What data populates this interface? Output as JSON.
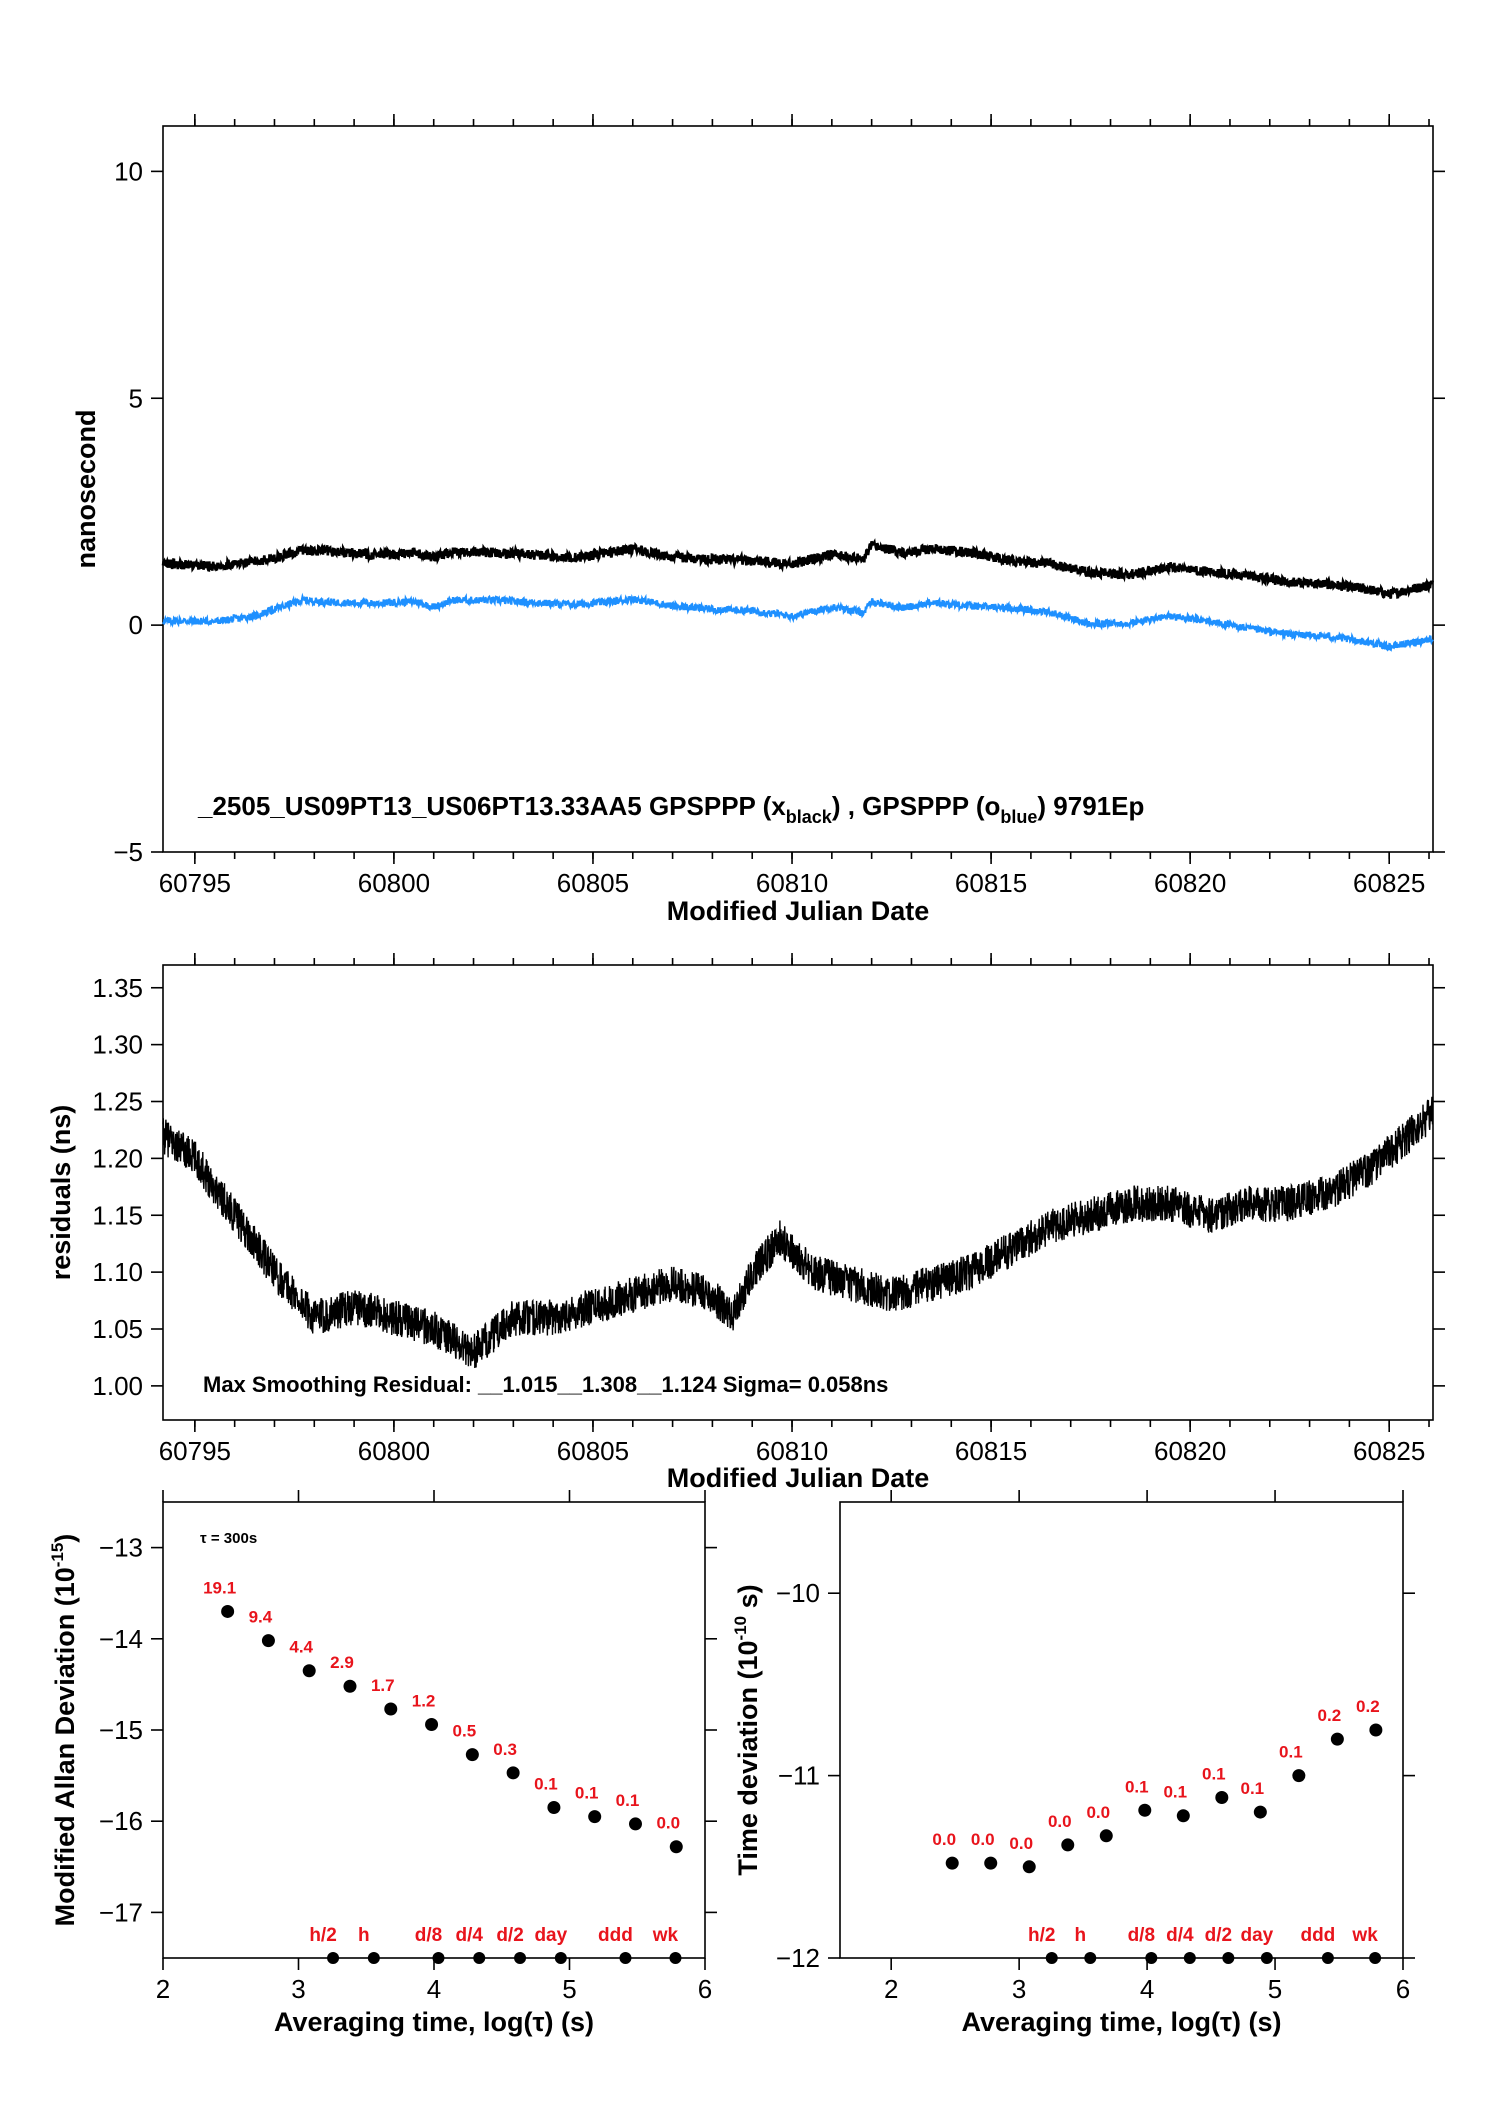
{
  "colors": {
    "black_series": "#000000",
    "blue_series": "#1e90ff",
    "red_labels": "#e8141c"
  },
  "chart_data": [
    {
      "type": "line",
      "panel": "top",
      "xlabel": "Modified Julian Date",
      "ylabel": "nanosecond",
      "xlim": [
        60794.2,
        60826.1
      ],
      "ylim": [
        -5,
        11
      ],
      "x_ticks": [
        "60795",
        "60800",
        "60805",
        "60810",
        "60815",
        "60820",
        "60825"
      ],
      "x_tick_values": [
        60795,
        60800,
        60805,
        60810,
        60815,
        60820,
        60825
      ],
      "y_ticks": [
        "10",
        "5",
        "0",
        "−5"
      ],
      "y_tick_values": [
        10,
        5,
        0,
        -5
      ],
      "annotation": {
        "prefix": "_2505_US09PT13_US06PT13.33AA5     GPSPPP (x",
        "sub1": "black",
        "mid": ") ,  GPSPPP (o",
        "sub2": "blue",
        "suffix": ")  9791Ep"
      },
      "x": [
        60794.2,
        60795.5,
        60796.5,
        60797.0,
        60797.7,
        60798.5,
        60799.5,
        60800.5,
        60801.0,
        60801.5,
        60802.5,
        60803.5,
        60804.5,
        60805.5,
        60806.0,
        60807.0,
        60808.0,
        60809.0,
        60810.0,
        60811.0,
        60811.8,
        60812.0,
        60812.8,
        60813.5,
        60814.5,
        60815.5,
        60816.5,
        60817.5,
        60818.5,
        60819.5,
        60820.5,
        60821.5,
        60822.5,
        60823.5,
        60824.5,
        60825.0,
        60826.1
      ],
      "series": [
        {
          "name": "GPSPPP (x black)",
          "color": "#000000",
          "values": [
            1.35,
            1.3,
            1.4,
            1.48,
            1.65,
            1.62,
            1.55,
            1.58,
            1.5,
            1.62,
            1.6,
            1.55,
            1.48,
            1.62,
            1.68,
            1.5,
            1.45,
            1.42,
            1.35,
            1.55,
            1.45,
            1.75,
            1.6,
            1.68,
            1.6,
            1.42,
            1.35,
            1.15,
            1.12,
            1.28,
            1.18,
            1.08,
            0.95,
            0.9,
            0.78,
            0.68,
            0.9
          ]
        },
        {
          "name": "GPSPPP (o blue)",
          "color": "#1e90ff",
          "values": [
            0.1,
            0.08,
            0.2,
            0.35,
            0.55,
            0.5,
            0.48,
            0.52,
            0.4,
            0.55,
            0.55,
            0.5,
            0.45,
            0.52,
            0.58,
            0.42,
            0.35,
            0.32,
            0.2,
            0.4,
            0.28,
            0.52,
            0.38,
            0.5,
            0.42,
            0.38,
            0.28,
            0.02,
            0.05,
            0.2,
            0.08,
            -0.08,
            -0.2,
            -0.25,
            -0.38,
            -0.48,
            -0.3
          ]
        }
      ]
    },
    {
      "type": "line",
      "panel": "middle",
      "xlabel": "Modified Julian Date",
      "ylabel": "residuals (ns)",
      "xlim": [
        60794.2,
        60826.1
      ],
      "ylim": [
        0.97,
        1.37
      ],
      "x_ticks": [
        "60795",
        "60800",
        "60805",
        "60810",
        "60815",
        "60820",
        "60825"
      ],
      "x_tick_values": [
        60795,
        60800,
        60805,
        60810,
        60815,
        60820,
        60825
      ],
      "y_ticks": [
        "1.35",
        "1.30",
        "1.25",
        "1.20",
        "1.15",
        "1.10",
        "1.05",
        "1.00"
      ],
      "y_tick_values": [
        1.35,
        1.3,
        1.25,
        1.2,
        1.15,
        1.1,
        1.05,
        1.0
      ],
      "annotation": "Max Smoothing Residual: __1.015__1.308__1.124  Sigma= 0.058ns",
      "x": [
        60794.2,
        60795.0,
        60796.0,
        60797.0,
        60798.0,
        60799.0,
        60800.0,
        60801.0,
        60802.0,
        60803.0,
        60804.0,
        60805.0,
        60806.0,
        60807.0,
        60808.0,
        60808.5,
        60809.0,
        60809.7,
        60810.5,
        60811.5,
        60812.5,
        60813.5,
        60814.5,
        60815.5,
        60816.5,
        60817.5,
        60818.5,
        60819.5,
        60820.5,
        60821.5,
        60822.5,
        60823.5,
        60824.5,
        60825.5,
        60826.1
      ],
      "series": [
        {
          "name": "residuals",
          "color": "#000000",
          "values": [
            1.22,
            1.2,
            1.15,
            1.1,
            1.06,
            1.07,
            1.06,
            1.05,
            1.03,
            1.06,
            1.06,
            1.07,
            1.08,
            1.09,
            1.08,
            1.06,
            1.1,
            1.13,
            1.1,
            1.09,
            1.08,
            1.09,
            1.1,
            1.12,
            1.14,
            1.15,
            1.16,
            1.16,
            1.15,
            1.16,
            1.16,
            1.17,
            1.19,
            1.22,
            1.24
          ]
        }
      ]
    },
    {
      "type": "scatter",
      "panel": "bottom-left",
      "xlabel": "Averaging time, log(τ) (s)",
      "ylabel": "Modified Allan Deviation (10",
      "ylabel_sup": "-15",
      "ylabel_end": ")",
      "xlim": [
        2,
        6
      ],
      "ylim": [
        -17.5,
        -12.5
      ],
      "x_ticks": [
        "2",
        "3",
        "4",
        "5",
        "6"
      ],
      "x_tick_values": [
        2,
        3,
        4,
        5,
        6
      ],
      "y_ticks": [
        "−13",
        "−14",
        "−15",
        "−16",
        "−17"
      ],
      "y_tick_values": [
        -13,
        -14,
        -15,
        -16,
        -17
      ],
      "note": "τ = 300s",
      "x": [
        2.477,
        2.778,
        3.079,
        3.38,
        3.681,
        3.982,
        4.283,
        4.584,
        4.885,
        5.186,
        5.487,
        5.788
      ],
      "values": [
        -13.7,
        -14.02,
        -14.35,
        -14.52,
        -14.77,
        -14.94,
        -15.27,
        -15.47,
        -15.85,
        -15.95,
        -16.03,
        -16.28
      ],
      "point_labels": [
        "19.1",
        "9.4",
        "4.4",
        "2.9",
        "1.7",
        "1.2",
        "0.5",
        "0.3",
        "0.1",
        "0.1",
        "0.1",
        "0.0"
      ],
      "markers": [
        {
          "label": "h/2",
          "x": 3.255
        },
        {
          "label": "h",
          "x": 3.556
        },
        {
          "label": "d/8",
          "x": 4.033
        },
        {
          "label": "d/4",
          "x": 4.334
        },
        {
          "label": "d/2",
          "x": 4.635
        },
        {
          "label": "day",
          "x": 4.936
        },
        {
          "label": "ddd",
          "x": 5.413
        },
        {
          "label": "wk",
          "x": 5.782
        }
      ]
    },
    {
      "type": "scatter",
      "panel": "bottom-right",
      "xlabel": "Averaging time, log(τ) (s)",
      "ylabel": "Time deviation (10",
      "ylabel_sup": "-10",
      "ylabel_end": " s)",
      "xlim": [
        1.6,
        6.0
      ],
      "ylim": [
        -12,
        -9.5
      ],
      "x_ticks": [
        "2",
        "3",
        "4",
        "5",
        "6"
      ],
      "x_tick_values": [
        2,
        3,
        4,
        5,
        6
      ],
      "y_ticks": [
        "−10",
        "−11",
        "−12"
      ],
      "y_tick_values": [
        -10,
        -11,
        -12
      ],
      "x": [
        2.477,
        2.778,
        3.079,
        3.38,
        3.681,
        3.982,
        4.283,
        4.584,
        4.885,
        5.186,
        5.487,
        5.788
      ],
      "values": [
        -11.48,
        -11.48,
        -11.5,
        -11.38,
        -11.33,
        -11.19,
        -11.22,
        -11.12,
        -11.2,
        -11.0,
        -10.8,
        -10.75
      ],
      "point_labels": [
        "0.0",
        "0.0",
        "0.0",
        "0.0",
        "0.0",
        "0.1",
        "0.1",
        "0.1",
        "0.1",
        "0.1",
        "0.2",
        "0.2"
      ],
      "markers": [
        {
          "label": "h/2",
          "x": 3.255
        },
        {
          "label": "h",
          "x": 3.556
        },
        {
          "label": "d/8",
          "x": 4.033
        },
        {
          "label": "d/4",
          "x": 4.334
        },
        {
          "label": "d/2",
          "x": 4.635
        },
        {
          "label": "day",
          "x": 4.936
        },
        {
          "label": "ddd",
          "x": 5.413
        },
        {
          "label": "wk",
          "x": 5.782
        }
      ]
    }
  ]
}
